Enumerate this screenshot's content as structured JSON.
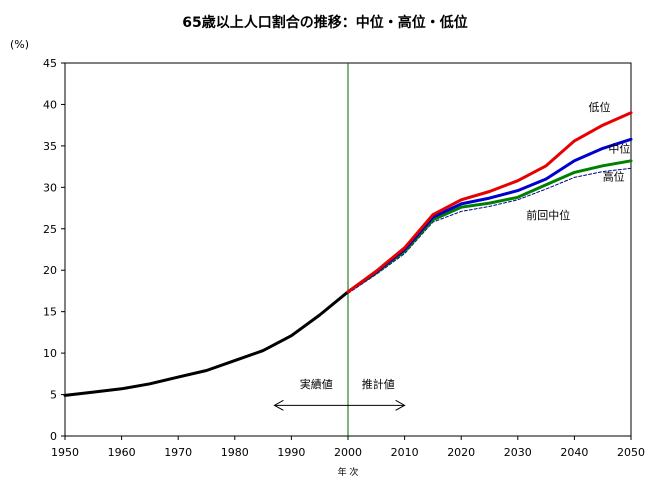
{
  "chart_data": {
    "type": "line",
    "title": "65歳以上人口割合の推移：中位・高位・低位",
    "ylabel": "(%)",
    "xlabel": "年 次",
    "xlim": [
      1950,
      2050
    ],
    "ylim": [
      0,
      45
    ],
    "xticks": [
      "1950",
      "1960",
      "1970",
      "1980",
      "1990",
      "2000",
      "2010",
      "2020",
      "2030",
      "2040",
      "2050"
    ],
    "yticks": [
      "0",
      "5",
      "10",
      "15",
      "20",
      "25",
      "30",
      "35",
      "40",
      "45"
    ],
    "grid": false,
    "divider_year": 2000,
    "annotations": {
      "actual": "実績値",
      "projected": "推計値",
      "arrow_from": 1987,
      "arrow_to": 2010
    },
    "series": [
      {
        "name": "実績値",
        "color": "#000000",
        "x": [
          1950,
          1955,
          1960,
          1965,
          1970,
          1975,
          1980,
          1985,
          1990,
          1995,
          2000
        ],
        "y": [
          4.9,
          5.3,
          5.7,
          6.3,
          7.1,
          7.9,
          9.1,
          10.3,
          12.1,
          14.6,
          17.4
        ]
      },
      {
        "name": "前回中位",
        "color": "#00008b",
        "dashed": true,
        "x": [
          2000,
          2005,
          2010,
          2015,
          2020,
          2025,
          2030,
          2035,
          2040,
          2045,
          2050
        ],
        "y": [
          17.2,
          19.5,
          22.0,
          25.8,
          27.1,
          27.7,
          28.5,
          29.8,
          31.2,
          31.9,
          32.3
        ]
      },
      {
        "name": "高位",
        "color": "#008000",
        "x": [
          2000,
          2005,
          2010,
          2015,
          2020,
          2025,
          2030,
          2035,
          2040,
          2045,
          2050
        ],
        "y": [
          17.4,
          19.7,
          22.3,
          26.1,
          27.6,
          28.1,
          28.8,
          30.3,
          31.8,
          32.6,
          33.2
        ]
      },
      {
        "name": "中位",
        "color": "#0000cd",
        "x": [
          2000,
          2005,
          2010,
          2015,
          2020,
          2025,
          2030,
          2035,
          2040,
          2045,
          2050
        ],
        "y": [
          17.4,
          19.8,
          22.5,
          26.4,
          28.0,
          28.7,
          29.6,
          31.0,
          33.2,
          34.7,
          35.8
        ]
      },
      {
        "name": "低位",
        "color": "#e60000",
        "x": [
          2000,
          2005,
          2010,
          2015,
          2020,
          2025,
          2030,
          2035,
          2040,
          2045,
          2050
        ],
        "y": [
          17.4,
          19.9,
          22.7,
          26.7,
          28.5,
          29.5,
          30.8,
          32.6,
          35.6,
          37.5,
          39.0
        ]
      }
    ],
    "series_labels": [
      {
        "text": "低位",
        "x": 2042.5,
        "y": 39.2
      },
      {
        "text": "中位",
        "x": 2046.0,
        "y": 34.2
      },
      {
        "text": "高位",
        "x": 2045.0,
        "y": 30.8
      },
      {
        "text": "前回中位",
        "x": 2031.5,
        "y": 26.2
      }
    ]
  }
}
